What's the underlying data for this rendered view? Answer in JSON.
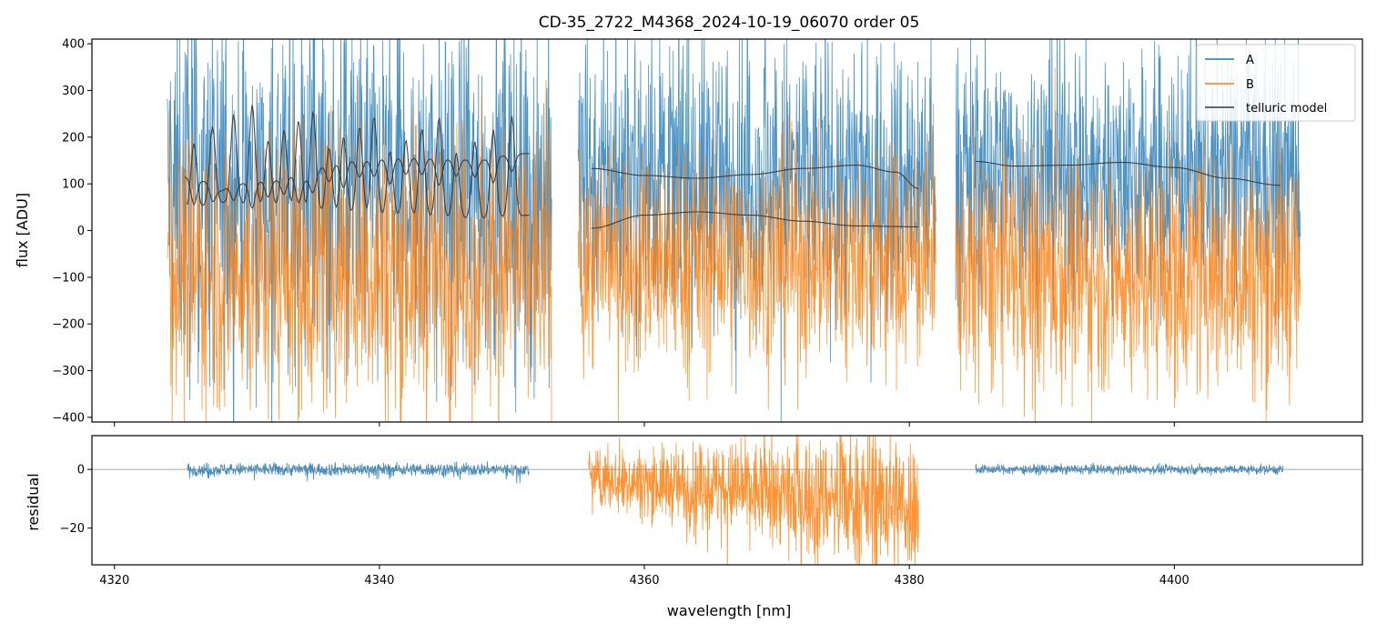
{
  "chart_data": [
    {
      "panel": "flux",
      "type": "line",
      "title": "CD-35_2722_M4368_2024-10-19_06070  order 05",
      "xlabel": "",
      "ylabel": "flux [ADU]",
      "xlim": [
        4318.3,
        4414.2
      ],
      "ylim": [
        -410,
        410
      ],
      "yticks": [
        -400,
        -300,
        -200,
        -100,
        0,
        100,
        200,
        300,
        400
      ],
      "ytick_labels": [
        "−400",
        "−300",
        "−200",
        "−100",
        "0",
        "100",
        "200",
        "300",
        "400"
      ],
      "xticks": [
        4320,
        4340,
        4360,
        4380,
        4400
      ],
      "grid": false,
      "legend": {
        "location": "top-right",
        "entries": [
          {
            "label": "A",
            "color": "#1f77b4"
          },
          {
            "label": "B",
            "color": "#ff7f0e"
          },
          {
            "label": "telluric model",
            "color": "#333333"
          }
        ]
      },
      "series": [
        {
          "name": "A",
          "color": "#1f77b4",
          "kind": "noisy spectrum",
          "segments": [
            {
              "x_range": [
                4324.0,
                4353.0
              ],
              "mean": 80,
              "noise": 330
            },
            {
              "x_range": [
                4355.0,
                4382.0
              ],
              "mean": 110,
              "noise": 250
            },
            {
              "x_range": [
                4383.5,
                4409.5
              ],
              "mean": 120,
              "noise": 230
            }
          ]
        },
        {
          "name": "B",
          "color": "#ff7f0e",
          "kind": "noisy spectrum",
          "segments": [
            {
              "x_range": [
                4324.0,
                4353.0
              ],
              "mean": -80,
              "noise": 250
            },
            {
              "x_range": [
                4355.0,
                4382.0
              ],
              "mean": -60,
              "noise": 200
            },
            {
              "x_range": [
                4383.5,
                4409.5
              ],
              "mean": -90,
              "noise": 210
            }
          ]
        },
        {
          "name": "telluric model (A)",
          "color": "#333333",
          "segments": [
            {
              "x": [
                4325.3,
                4327.0,
                4328.0,
                4329.0,
                4332.0,
                4333.5,
                4334.5,
                4336.0,
                4338.0,
                4342.0,
                4346.0,
                4347.5,
                4349.0,
                4351.3
              ],
              "y": [
                115,
                105,
                85,
                100,
                108,
                118,
                110,
                140,
                150,
                156,
                152,
                150,
                160,
                165
              ]
            },
            {
              "x": [
                4356.0,
                4360.0,
                4364.0,
                4368.0,
                4372.0,
                4376.0,
                4379.0,
                4380.7
              ],
              "y": [
                133,
                118,
                112,
                120,
                133,
                140,
                125,
                90
              ]
            },
            {
              "x": [
                4385.0,
                4388.0,
                4392.0,
                4396.0,
                4400.0,
                4404.0,
                4408.0
              ],
              "y": [
                148,
                138,
                140,
                146,
                135,
                112,
                97
              ]
            }
          ]
        },
        {
          "name": "telluric model (B)",
          "color": "#333333",
          "segments": [
            {
              "x": [
                4325.5,
                4328.0,
                4332.0,
                4336.0,
                4340.0,
                4344.0,
                4348.0,
                4350.0,
                4351.3
              ],
              "y": [
                45,
                60,
                52,
                38,
                30,
                28,
                25,
                30,
                33
              ]
            },
            {
              "x": [
                4356.0,
                4360.0,
                4364.0,
                4368.0,
                4372.0,
                4376.0,
                4380.7
              ],
              "y": [
                5,
                33,
                40,
                33,
                20,
                10,
                8
              ]
            }
          ]
        }
      ],
      "absorption_lines_x": [
        4326.0,
        4327.4,
        4329.0,
        4330.4,
        4331.6,
        4332.8,
        4333.9,
        4335.0,
        4336.2,
        4337.3,
        4338.5,
        4339.6,
        4340.8,
        4342.0,
        4343.2,
        4344.5,
        4345.8,
        4347.2,
        4348.6,
        4350.0
      ]
    },
    {
      "panel": "residual",
      "type": "line",
      "xlabel": "wavelength [nm]",
      "ylabel": "residual",
      "xlim": [
        4318.3,
        4414.2
      ],
      "ylim": [
        -32.5,
        11.5
      ],
      "yticks": [
        -20,
        0
      ],
      "ytick_labels": [
        "−20",
        "0"
      ],
      "xticks": [
        4320,
        4340,
        4360,
        4380,
        4400
      ],
      "xtick_labels": [
        "4320",
        "4340",
        "4360",
        "4380",
        "4400"
      ],
      "reference_line_y": 0,
      "series": [
        {
          "name": "A",
          "color": "#1f77b4",
          "segments": [
            {
              "x_range": [
                4325.5,
                4351.3
              ],
              "mean": 0,
              "noise": 2.2
            },
            {
              "x_range": [
                4385.0,
                4408.2
              ],
              "mean": 0,
              "noise": 1.6
            }
          ]
        },
        {
          "name": "B",
          "color": "#ff7f0e",
          "segments": [
            {
              "x_range": [
                4355.8,
                4380.7
              ],
              "mean_start": -3,
              "mean_end": -12,
              "noise_start": 8,
              "noise_end": 22
            }
          ]
        }
      ]
    }
  ]
}
